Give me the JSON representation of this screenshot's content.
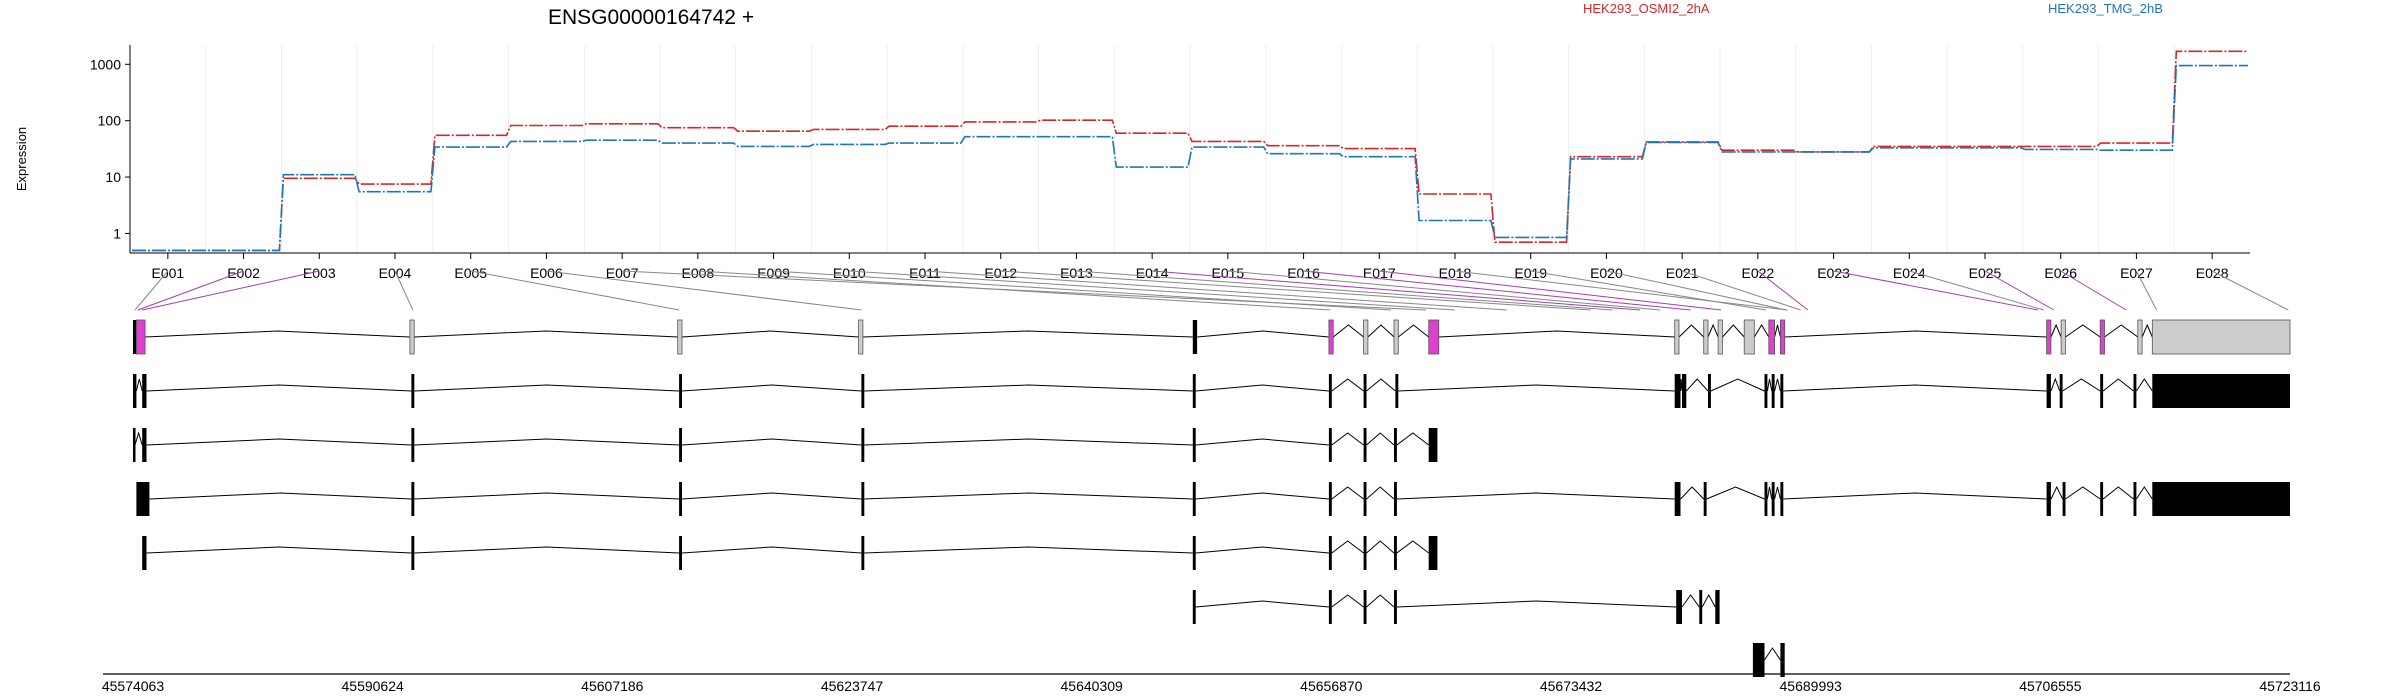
{
  "chart_data": {
    "type": "line",
    "title": "ENSG00000164742 +",
    "ylabel": "Expression",
    "y_scale": "log",
    "yticks": [
      "1",
      "10",
      "100",
      "1000"
    ],
    "ylim": [
      0.45,
      2200
    ],
    "grid": "vertical, per exon",
    "legend": [
      "HEK293_OSMI2_2hA",
      "HEK293_TMG_2hB"
    ],
    "categories": [
      "E001",
      "E002",
      "E003",
      "E004",
      "E005",
      "E006",
      "E007",
      "E008",
      "E009",
      "E010",
      "E011",
      "E012",
      "E013",
      "E014",
      "E015",
      "E016",
      "E017",
      "E018",
      "E019",
      "E020",
      "E021",
      "E022",
      "E023",
      "E024",
      "E025",
      "E026",
      "E027",
      "E028"
    ],
    "series": [
      {
        "name": "HEK293_OSMI2_2hA",
        "color": "#d62728",
        "values": [
          0.5,
          0.5,
          9.5,
          7.5,
          55,
          82,
          88,
          75,
          65,
          70,
          80,
          95,
          102,
          60,
          43,
          36,
          32,
          5,
          0.7,
          23,
          42,
          30,
          28,
          35,
          35,
          35,
          40,
          1700
        ]
      },
      {
        "name": "HEK293_TMG_2hB",
        "color": "#1f77b4",
        "values": [
          0.5,
          0.5,
          11,
          5.5,
          34,
          43,
          45,
          40,
          35,
          38,
          40,
          52,
          52,
          15,
          34,
          26,
          23,
          1.7,
          0.85,
          21,
          41,
          28,
          28,
          33,
          33,
          31,
          30,
          950
        ]
      }
    ]
  },
  "genome_axis": {
    "tick_labels": [
      "45574063",
      "45590624",
      "45607186",
      "45623747",
      "45640309",
      "45656870",
      "45673432",
      "45689993",
      "45706555",
      "45723116"
    ]
  },
  "colors": {
    "highlight_exon": "#e040d0",
    "grey_exon": "#cccccc",
    "exon": "#000000",
    "connector_highlight": "#a040b0",
    "connector": "#888888"
  }
}
